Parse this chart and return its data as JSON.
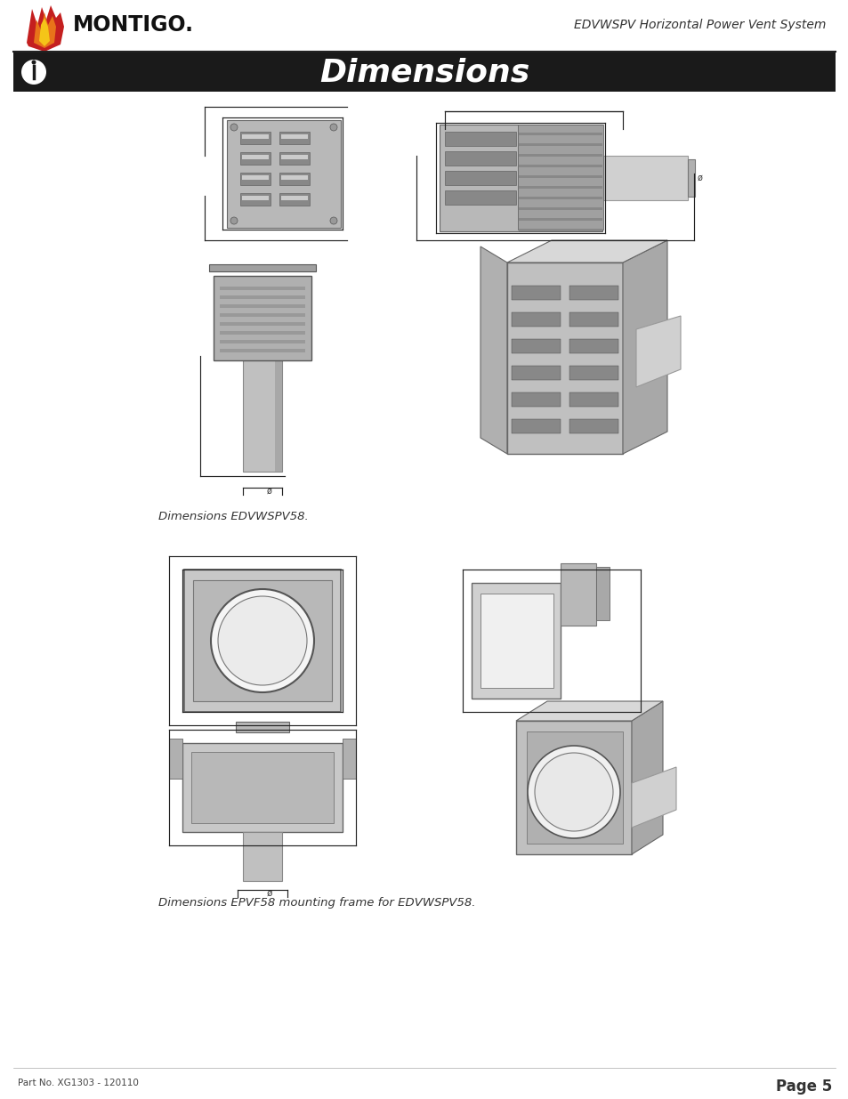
{
  "page_title": "Dimensions",
  "header_right": "EDVWSPV Horizontal Power Vent System",
  "header_banner_color": "#1a1a1a",
  "header_text_color": "#ffffff",
  "background_color": "#ffffff",
  "caption1": "Dimensions EDVWSPV58.",
  "caption2": "Dimensions EPVF58 mounting frame for EDVWSPV58.",
  "footer_left": "Part No. XG1303 - 120110",
  "footer_right": "Page 5",
  "figsize": [
    9.54,
    12.35
  ],
  "dpi": 100
}
